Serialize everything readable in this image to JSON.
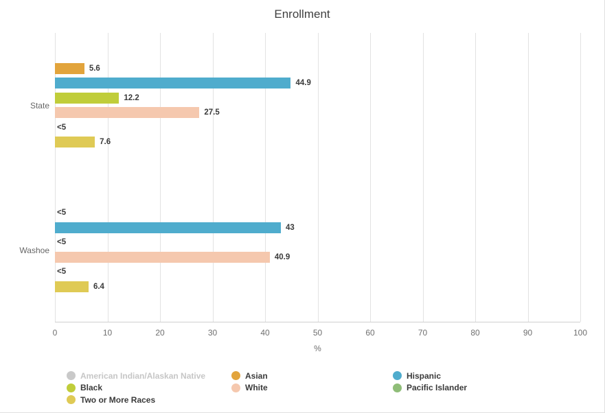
{
  "chart_data": {
    "type": "bar",
    "orientation": "horizontal",
    "title": "Enrollment",
    "xlabel": "%",
    "xlim": [
      0,
      100
    ],
    "xticks": [
      0,
      10,
      20,
      30,
      40,
      50,
      60,
      70,
      80,
      90,
      100
    ],
    "grid": "vertical",
    "legend_position": "bottom",
    "categories": [
      "State",
      "Washoe"
    ],
    "suppressed_value_text": "<5",
    "series": [
      {
        "name": "American Indian/Alaskan Native",
        "slug": "american-indian-alaskan-native",
        "color": "#c9c9c9",
        "enabled": false,
        "values": [
          null,
          null
        ]
      },
      {
        "name": "Asian",
        "slug": "asian",
        "color": "#e2a43c",
        "enabled": true,
        "values": [
          5.6,
          "<5"
        ]
      },
      {
        "name": "Hispanic",
        "slug": "hispanic",
        "color": "#4faccd",
        "enabled": true,
        "values": [
          44.9,
          43
        ]
      },
      {
        "name": "Black",
        "slug": "black",
        "color": "#c0cd3a",
        "enabled": true,
        "values": [
          12.2,
          "<5"
        ]
      },
      {
        "name": "White",
        "slug": "white",
        "color": "#f5c8ae",
        "enabled": true,
        "values": [
          27.5,
          40.9
        ]
      },
      {
        "name": "Pacific Islander",
        "slug": "pacific-islander",
        "color": "#8fbd78",
        "enabled": true,
        "values": [
          "<5",
          "<5"
        ]
      },
      {
        "name": "Two or More Races",
        "slug": "two-or-more-races",
        "color": "#dfca55",
        "enabled": true,
        "values": [
          7.6,
          6.4
        ]
      }
    ]
  }
}
